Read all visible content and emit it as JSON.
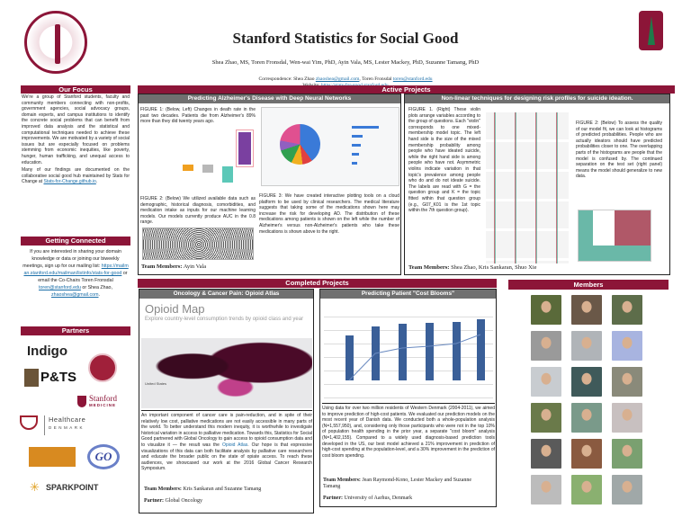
{
  "header": {
    "title": "Stanford Statistics for Social Good",
    "authors": "Shea Zhao, MS, Toren Fronsdal, Wen-wai Yim, PhD, Ayin Vala, MS, Lester Mackey, PhD, Suzanne Tamang, PhD",
    "correspondence_label": "Correspondence: Shea Zhao",
    "email_shea": "zhaoshea@gmail.com",
    "correspondence_mid": ", Toren Fronsdal",
    "email_toren": "toren@stanford.edu",
    "website_label": "Website:",
    "website_url": "https://stats-for-good.stanford.edu"
  },
  "colors": {
    "maroon": "#8c1538",
    "gray_header": "#707070",
    "link": "#1a6ea8"
  },
  "focus": {
    "title": "Our Focus",
    "p1": "We're a group of Stanford students, faculty and community members connecting with non-profits, government agencies, social advocacy groups, domain experts, and campus institutions to identify the concrete social problems that can benefit from improved data analysis and the statistical and computational techniques needed to achieve these improvements. We are motivated by a variety of social issues but are especially focused on problems stemming from economic inequities, like poverty, hunger, human trafficking, and unequal access to education.",
    "p2": "Many of our findings are documented on the collaborative social good hub maintained by Stats for Change at",
    "p2_link": "Stats-for-Change.github.io",
    "p2_end": "."
  },
  "connected": {
    "title": "Getting Connected",
    "text1": "If you are interested in sharing your domain knowledge or data or joining our biweekly meetings, sign up for our mailing list:",
    "mailing_link": "https://mailman.stanford.edu/mailman/listinfo/stats-for-good",
    "text2": " or email the Co-Chairs Toren Fronsdal ",
    "email_toren": "toren@stanford.edu",
    "text3": " or Shea Zhao, ",
    "email_shea": "zhaoshea@gmail.com",
    "text4": "."
  },
  "partners": {
    "title": "Partners",
    "logos": [
      "Indigo",
      "P&TS",
      "Stanford MEDICINE",
      "Healthcare DENMARK",
      "GO",
      "SPARKPOINT"
    ],
    "stanford_word": "Stanford",
    "medicine_word": "MEDICINE",
    "healthcare_word": "Healthcare",
    "denmark_word": "DENMARK",
    "sparkpoint_word": "SPARKPOINT",
    "go_word": "GO"
  },
  "active": {
    "title": "Active Projects",
    "alz": {
      "title": "Predicting Alzheimer's Disease with Deep Neural Networks",
      "fig1": "FIGURE 1: (Below, Left) Changes in death rate in the past two decades. Patients die from Alzheimer's 89% more than they did twenty years ago.",
      "fig2": "FIGURE 2: (Below) We utilized available data such as demographic, historical diagnosis, comorbidities, and medication intake as inputs for our machine learning models. Our models currently produce AUC in the 0.8 range.",
      "fig3": "FIGURE 3: We have created interactive plotting tools on a cloud platform to be used by clinical researchers. The medical literature suggests that taking some of the medications shown here may increase the risk for developing AD. The distribution of these medications among patients is shown on the left while the number of Alzheimer's versus non-Alzheimer's patients who take these medications is shown above to the right.",
      "team_label": "Team Members:",
      "team": "Ayin Vala"
    },
    "suicide": {
      "title": "Non-linear techniques for designing risk profiles for suicide ideation.",
      "fig1": "FIGURE 1. (Right) These violin plots arrange variables according to the group of questions. Each \"violin\" corresponds to one mixed-membership model topic. The left hand side is the size of the mixed membership probability among people who have ideated suicide, while the right hand side is among people who have not. Asymmetric violins indicate variation in that topic's prevalence among people who do and do not ideate suicide. The labels are read with G = the question group and K = the topic fitted within that question group (e.g., G07_K01 is the 1st topic within the 7th question group).",
      "fig2": "FIGURE 2: (Below) To assess the quality of our model fit, we can look at histograms of predicted probabilities. People who are actually ideators should have predicted probabilities closer to one. The overlapping parts of the histograms are people that the model is confused by. The continued separation on the test set (right panel) means the model should generalize to new data.",
      "team_label": "Team Members:",
      "team": "Shea Zhao,  Kris Sankaran, Shuo Xie"
    }
  },
  "completed": {
    "title": "Completed Projects",
    "opioid": {
      "title": "Oncology & Cancer Pain: Opioid Atlas",
      "map_title": "Opioid Map",
      "map_subtitle": "Explore country-level consumption trends by opioid class and year",
      "inset_label": "United States",
      "text_a": "An important component of cancer care is pain-reduction, and in spite of their relatively low cost, palliative medications are not easily accessible in many parts of the world. To better understand this modern inequity, it is worthwhile to investigate historical variation in access to palliative medication. Towards this, Statistics for Social Good partnered with Global Oncology to gain access to opioid consumption data and to visualize it — the result was the ",
      "link": "Opioid Atlas",
      "text_b": ". Our hope is that expressive visualizations of this data can both facilitate analysis by palliative care researchers and educate the broader public on the state of opiate access. To reach these audiences, we showcased our work at the 2016 Global Cancer Research Symposium.",
      "team_label": "Team Members:",
      "team": "Kris Sankaran and Suzanne Tamang",
      "partner_label": "Partner:",
      "partner": "Global Oncology"
    },
    "cost": {
      "title": "Predicting Patient \"Cost Blooms\"",
      "text": "Using data for over two million residents of Western Denmark (2004-2011), we aimed to improve prediction of high-cost patients. We evaluated our prediction models on the most recent year of Danish data. We conducted both a whole-population analysis (N=1,557,950), and, considering only those participants who were not in the top 10% of population health spending in the prior year, a separate \"cost bloom\" analysis (N=1,402,155). Compared to a widely used diagnosis-based prediction tools developed in the US, our best model achieved a 21% improvement in prediction of high-cost spending at the population-level, and a 30% improvement in the prediction of cost bloom spending.",
      "team_label": "Team Members:",
      "team": "Jean Raymond-Kono, Lester Mackey and Suzanne Tamang",
      "partner_label": "Partner:",
      "partner": "University of Aarhus, Denmark"
    }
  },
  "members": {
    "title": "Members",
    "photo_colors": [
      "#5a6a3a",
      "#6a5848",
      "#5d6d4a",
      "#9a9a9a",
      "#b0b4b8",
      "#a8b4e0",
      "#c8ccd0",
      "#3f5a5a",
      "#8a8a7a",
      "#6a7a4a",
      "#7a9a8a",
      "#c8c0c0",
      "#5a5a5a",
      "#8a5a40",
      "#7aa070",
      "#bcbcbc",
      "#8ab070",
      "#a0a8a8"
    ]
  }
}
